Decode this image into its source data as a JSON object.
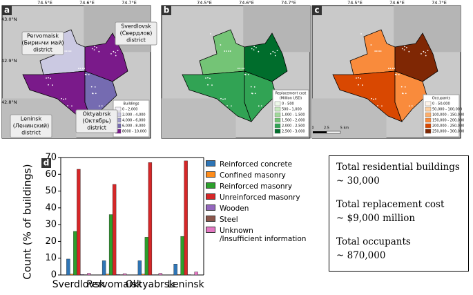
{
  "maps": {
    "lon_ticks": [
      "74.5°E",
      "74.6°E",
      "74.7°E"
    ],
    "lat_ticks": [
      "43.0°N",
      "42.9°N",
      "42.8°N"
    ],
    "districts": [
      [
        "Pervomaisk",
        "(Биринчи май)",
        "district"
      ],
      [
        "Sverdlovsk",
        "(Свердлов)",
        "district"
      ],
      [
        "Leninsk",
        "(Ленинский)",
        "district"
      ],
      [
        "Oktyabrsk",
        "(Октябрь)",
        "district"
      ]
    ],
    "panels": [
      {
        "label": "a",
        "legend_title": [
          "Buildings"
        ],
        "legend": [
          "0 - 2,000",
          "2,000 - 4,000",
          "4,000 - 6,000",
          "6,000 - 8,000",
          "8000 - 10,000"
        ],
        "colors": [
          "#f2f0f7",
          "#cbc9e2",
          "#9e9ac8",
          "#756bb1",
          "#7a1a8a"
        ]
      },
      {
        "label": "b",
        "legend_title": [
          "Replacement cost",
          "(Million USD)"
        ],
        "legend": [
          "0 - 500",
          "500 - 1,000",
          "1,000 - 1,500",
          "1,500 - 2,000",
          "2,000 - 2,500",
          "2,500 - 3,000"
        ],
        "colors": [
          "#edf8e9",
          "#c7e9c0",
          "#a1d99b",
          "#74c476",
          "#31a354",
          "#006d2c"
        ]
      },
      {
        "label": "c",
        "legend_title": [
          "Occupants"
        ],
        "legend": [
          "0 - 50,000",
          "50,000 - 100,000",
          "100,000 - 150,000",
          "150,000 - 200,000",
          "200,000 - 250,000",
          "250,000 - 300,000"
        ],
        "colors": [
          "#fff5eb",
          "#fdd0a2",
          "#fdae6b",
          "#f98b3c",
          "#d94801",
          "#7f2704"
        ]
      }
    ],
    "scale_bar": [
      "0",
      "2.5",
      "5 km"
    ]
  },
  "chart_data": {
    "type": "bar",
    "label": "d",
    "ylabel": "Count (% of buildings)",
    "categories": [
      "Sverdlovsk",
      "Pervomaisk",
      "Oktyabrsk",
      "Leninsk"
    ],
    "series": [
      {
        "name": "Reinforced concrete",
        "color": "#2e75b6",
        "values": [
          9.5,
          8.5,
          8.5,
          6.5
        ]
      },
      {
        "name": "Confined masonry",
        "color": "#ff8c1a",
        "values": [
          0.5,
          0.5,
          0.5,
          0.3
        ]
      },
      {
        "name": "Reinforced masonry",
        "color": "#2ca02c",
        "values": [
          26,
          36,
          22.5,
          23
        ]
      },
      {
        "name": "Unreinforced masonry",
        "color": "#d62728",
        "values": [
          63,
          54,
          67,
          68
        ]
      },
      {
        "name": "Wooden",
        "color": "#9467bd",
        "values": [
          0.3,
          0.3,
          0.2,
          0.2
        ]
      },
      {
        "name": "Steel",
        "color": "#8c564b",
        "values": [
          0.2,
          0.2,
          0.2,
          0.1
        ]
      },
      {
        "name": "Unknown\n/Insufficient information",
        "color": "#e377c2",
        "values": [
          1,
          0.8,
          1,
          1.8
        ]
      }
    ],
    "ylim": [
      0,
      70
    ],
    "yticks": [
      0,
      10,
      20,
      30,
      40,
      50,
      60,
      70
    ]
  },
  "summary": [
    "Total residential buildings",
    "~ 30,000",
    "Total replacement cost",
    "~ $9,000 million",
    "Total occupants",
    "~ 870,000"
  ]
}
